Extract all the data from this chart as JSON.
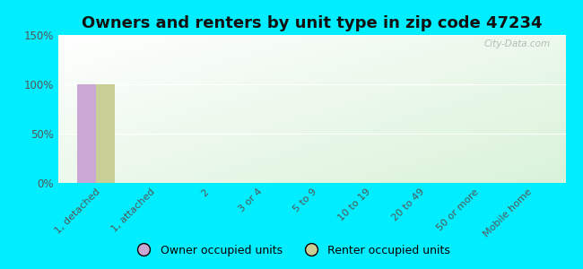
{
  "title": "Owners and renters by unit type in zip code 47234",
  "categories": [
    "1, detached",
    "1, attached",
    "2",
    "3 or 4",
    "5 to 9",
    "10 to 19",
    "20 to 49",
    "50 or more",
    "Mobile home"
  ],
  "owner_values": [
    100,
    0,
    0,
    0,
    0,
    0,
    0,
    0,
    0
  ],
  "renter_values": [
    100,
    0,
    0,
    0,
    0,
    0,
    0,
    0,
    0
  ],
  "owner_color": "#c9a8d4",
  "renter_color": "#c8cf96",
  "ylim": [
    0,
    150
  ],
  "yticks": [
    0,
    50,
    100,
    150
  ],
  "ytick_labels": [
    "0%",
    "50%",
    "100%",
    "150%"
  ],
  "outer_background": "#00eeff",
  "title_fontsize": 13,
  "bar_width": 0.35,
  "watermark": "City-Data.com",
  "legend_labels": [
    "Owner occupied units",
    "Renter occupied units"
  ]
}
